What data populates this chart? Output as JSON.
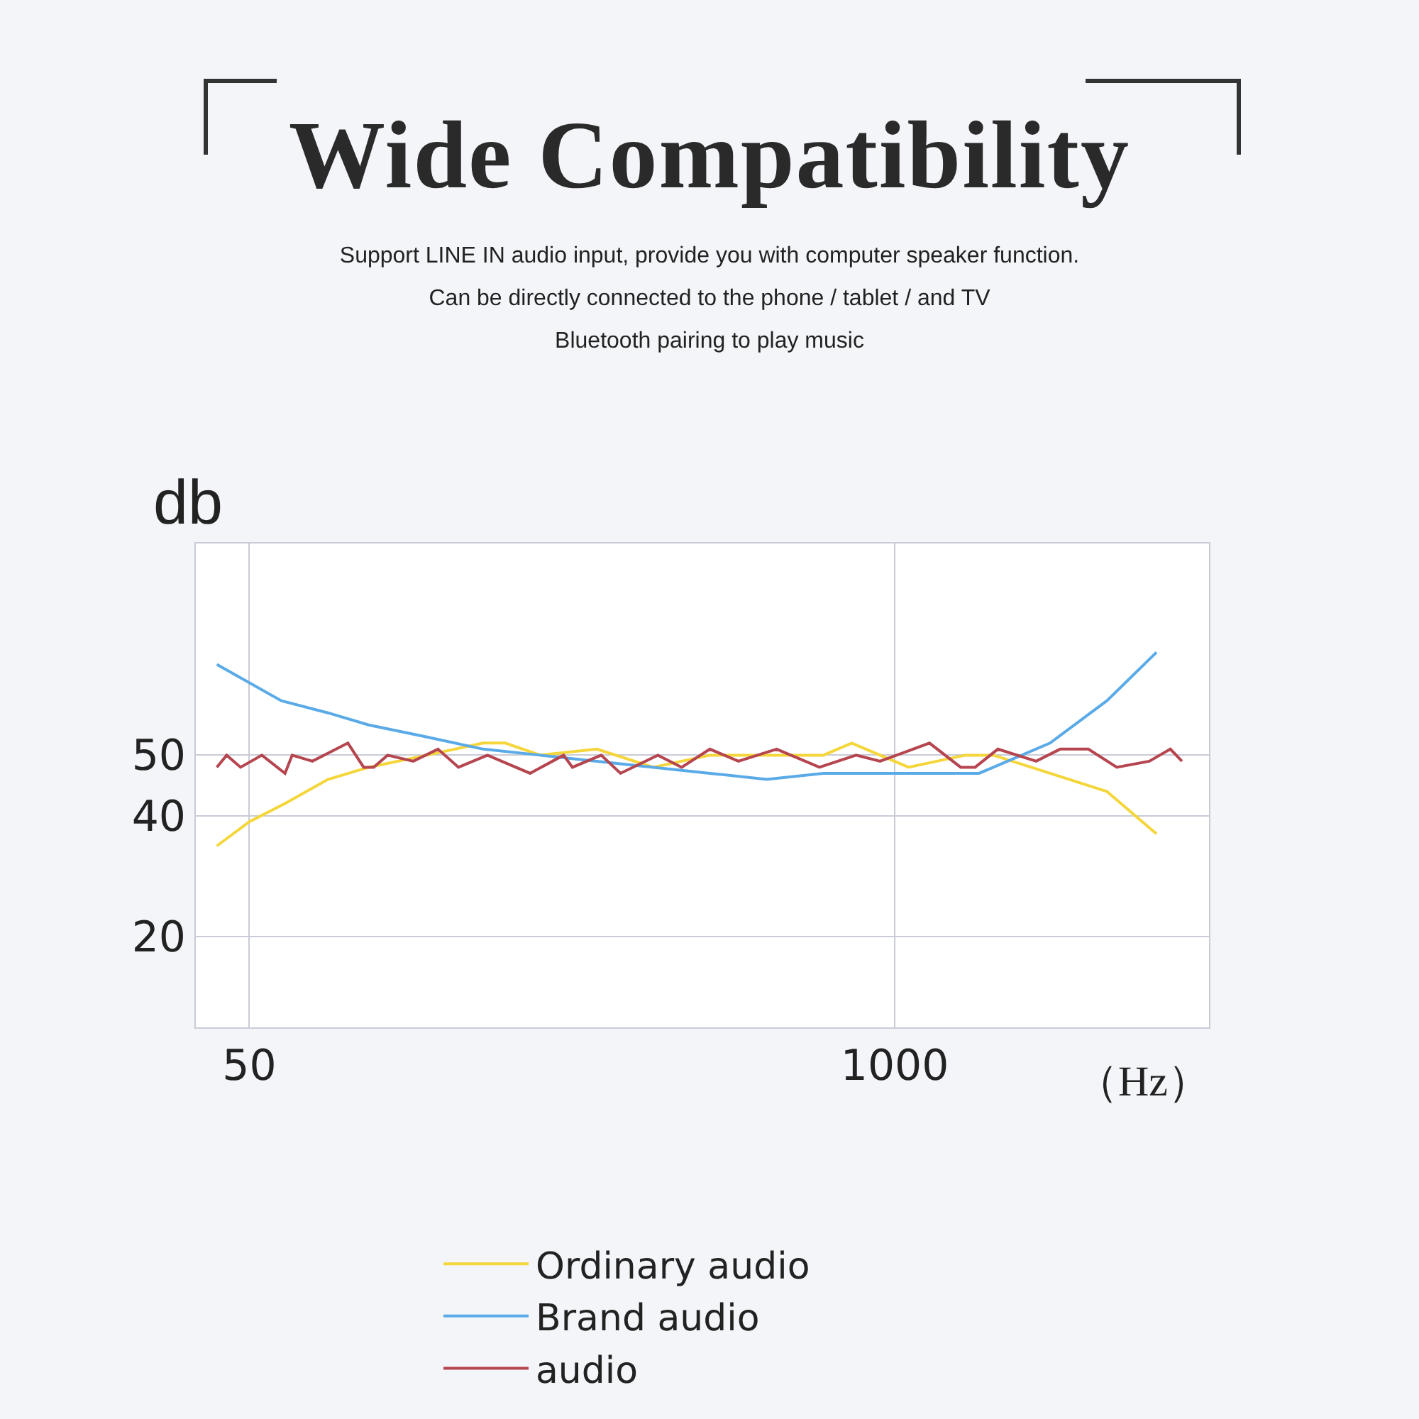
{
  "chart_data": {
    "type": "line",
    "title": "Wide Compatibility",
    "subtitle": "Support LINE IN audio input, provide you with computer speaker function.\nCan be directly connected to the phone / tablet / and TV\nBluetooth pairing to play music",
    "ylabel": "db",
    "xlabel": "（Hz）",
    "log": "x",
    "xlim": [
      39,
      4300
    ],
    "xticks": [
      50,
      1000
    ],
    "ylim": [
      5,
      85
    ],
    "yticks": [
      20,
      40,
      50
    ],
    "grid": true,
    "legend": "bottom",
    "marker": "none",
    "line_style": "solid",
    "series": [
      {
        "name": "Ordinary audio",
        "color": "#f5d63a",
        "x": [
          43,
          50,
          59,
          72,
          87,
          114,
          148,
          164,
          193,
          251,
          326,
          424,
          552,
          718,
          819,
          1066,
          1387,
          1581,
          2056,
          2677,
          3370
        ],
        "values": [
          35,
          39,
          42,
          46,
          48,
          50,
          52,
          52,
          50,
          51,
          48,
          50,
          50,
          50,
          52,
          48,
          50,
          50,
          47,
          44,
          37
        ]
      },
      {
        "name": "Brand audio",
        "color": "#5aaae8",
        "x": [
          43,
          58,
          72,
          87,
          114,
          148,
          193,
          251,
          326,
          424,
          552,
          718,
          934,
          1215,
          1479,
          1581,
          2056,
          2677,
          3370
        ],
        "values": [
          65,
          59,
          57,
          55,
          53,
          51,
          50,
          49,
          48,
          47,
          46,
          47,
          47,
          47,
          47,
          48,
          52,
          59,
          67
        ]
      },
      {
        "name": "audio",
        "color": "#b5454f",
        "x": [
          43,
          45,
          48,
          53,
          59,
          61,
          67,
          79,
          85,
          89,
          95,
          107,
          120,
          132,
          151,
          184,
          215,
          224,
          256,
          280,
          333,
          372,
          424,
          484,
          578,
          705,
          836,
          934,
          1175,
          1358,
          1452,
          1614,
          1928,
          2155,
          2456,
          2803,
          3259,
          3594,
          3793
        ],
        "values": [
          48,
          50,
          48,
          50,
          47,
          50,
          49,
          52,
          48,
          48,
          50,
          49,
          51,
          48,
          50,
          47,
          50,
          48,
          50,
          47,
          50,
          48,
          51,
          49,
          51,
          48,
          50,
          49,
          52,
          48,
          48,
          51,
          49,
          51,
          51,
          48,
          49,
          51,
          49
        ]
      }
    ]
  }
}
